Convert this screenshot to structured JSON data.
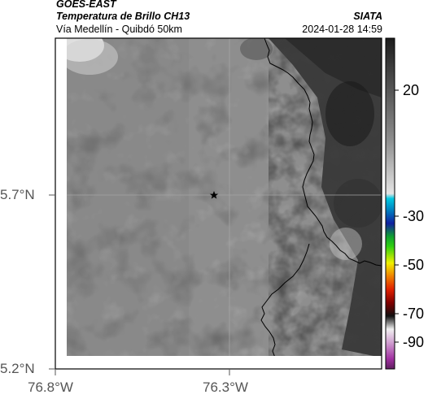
{
  "header": {
    "satellite": "GOES-EAST",
    "product": "Temperatura de Brillo CH13",
    "route": "Vía Medellín - Quibdó 50km",
    "source": "SIATA",
    "timestamp": "2024-01-28 14:59"
  },
  "map": {
    "lat_ticks": [
      "5.7°N",
      "5.2°N"
    ],
    "lon_ticks": [
      "76.8°W",
      "76.3°W"
    ],
    "marker": "star"
  },
  "colorbar": {
    "tick_labels": [
      "20",
      "-30",
      "-50",
      "-70",
      "-90"
    ],
    "colors": {
      "gray_scale": [
        "#2a2a2a",
        "#d8d8d8"
      ],
      "cyan": "#00b0d0",
      "blue": "#1020a0",
      "green": "#10c010",
      "yellow": "#f0f000",
      "red": "#e02000",
      "magenta": "#b040b0"
    }
  }
}
